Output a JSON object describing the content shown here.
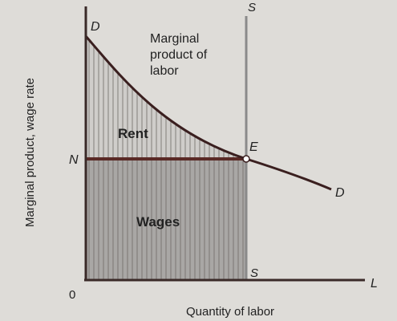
{
  "labels": {
    "y_axis": "Marginal product, wage rate",
    "x_axis": "Quantity of labor",
    "origin": "0",
    "x_axis_end": "L",
    "curve_top": "D",
    "curve_end": "D",
    "supply_top": "S",
    "supply_bottom": "S",
    "wage_level": "N",
    "equilibrium": "E",
    "curve_caption": [
      "Marginal",
      "product of",
      "labor"
    ],
    "rent_area": "Rent",
    "wages_area": "Wages"
  },
  "colors": {
    "background": "#dedcd8",
    "axes": "#3a2a28",
    "curve": "#3a1f1f",
    "supply_line": "#8a8a8a",
    "wage_line": "#5a2a26",
    "wages_fill": "#a9a7a5",
    "rent_fill": "#cfcdca",
    "hatch": "#6f6a66"
  }
}
